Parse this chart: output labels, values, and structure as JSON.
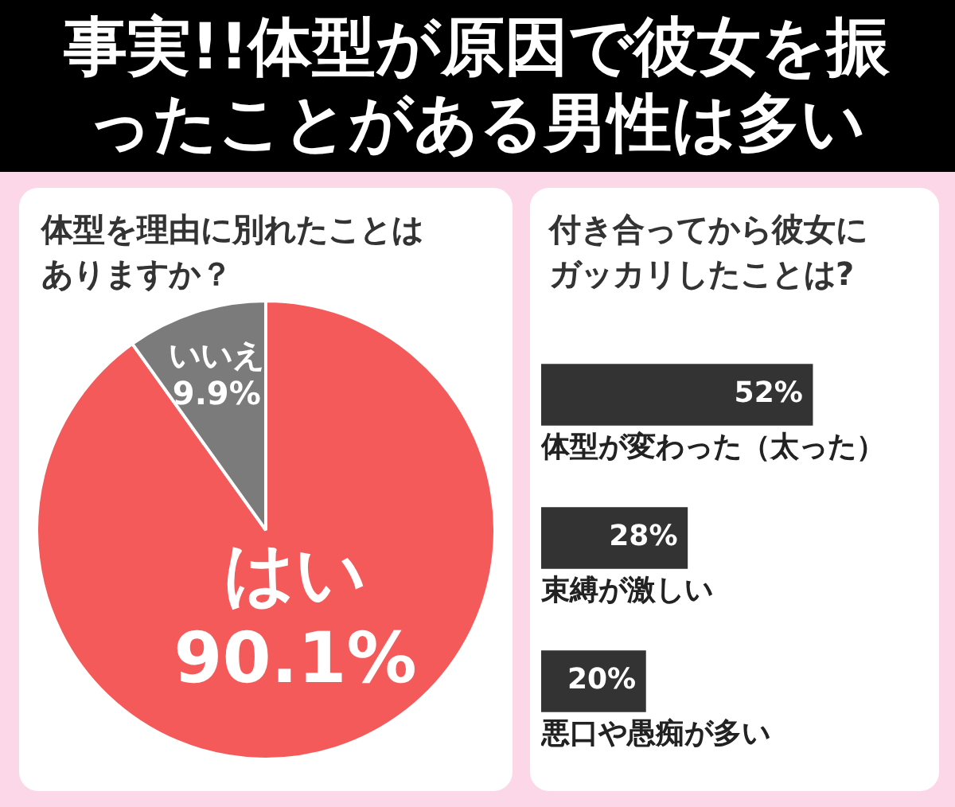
{
  "chart_data": [
    {
      "type": "pie",
      "title": "事実!!体型が原因で彼女を振ったことがある男性は多い",
      "subtitle": "体型を理由に別れたことはありますか？",
      "categories": [
        "はい",
        "いいえ"
      ],
      "values": [
        90.1,
        9.9
      ],
      "colors": [
        "#f55a5a",
        "#7b7b7b"
      ],
      "value_labels": [
        "90.1%",
        "9.9%"
      ],
      "legend": false
    },
    {
      "type": "bar",
      "orientation": "horizontal",
      "title": "付き合ってから彼女にガッカリしたことは?",
      "categories": [
        "体型が変わった（太った）",
        "束縛が激しい",
        "悪口や愚痴が多い"
      ],
      "values": [
        52,
        28,
        20
      ],
      "color": "#333333",
      "value_labels": [
        "52%",
        "28%",
        "20%"
      ],
      "legend": false
    }
  ]
}
